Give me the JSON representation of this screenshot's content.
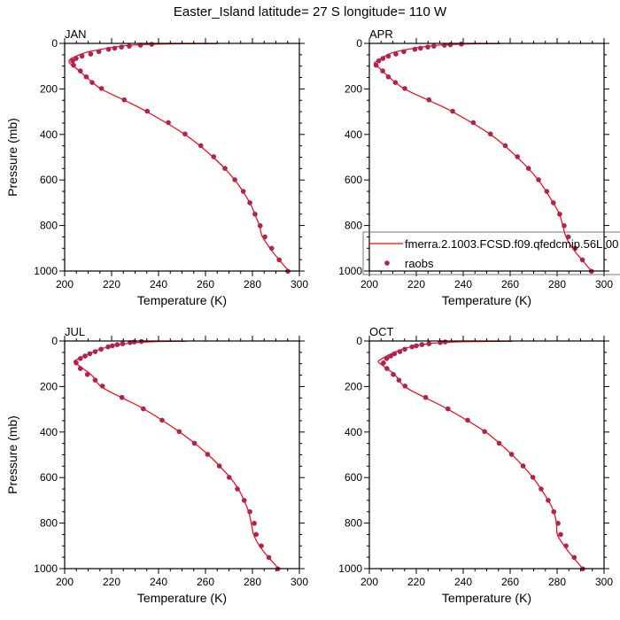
{
  "title": "Easter_Island  latitude= 27 S longitude= 110 W",
  "legend": {
    "model_label": "fmerra.2.1003.FCSD.f09.qfedcmip.56L.00",
    "obs_label": "raobs",
    "placement": "inside lower-right of APR panel"
  },
  "colors": {
    "model": "#ff0000",
    "obs": "#b0234f",
    "frame": "#000000"
  },
  "chart_data": [
    {
      "type": "line+scatter",
      "title": "JAN",
      "xlabel": "Temperature (K)",
      "ylabel": "Pressure (mb)",
      "xlim": [
        200,
        300
      ],
      "ylim": [
        1000,
        0
      ],
      "xticks": [
        "200",
        "220",
        "240",
        "260",
        "280",
        "300"
      ],
      "yticks": [
        "0",
        "200",
        "400",
        "600",
        "800",
        "1000"
      ],
      "obs": {
        "p": [
          4,
          8,
          12,
          16,
          21,
          26,
          36,
          47,
          56,
          66,
          77,
          96,
          121,
          147,
          172,
          198,
          248,
          298,
          348,
          398,
          449,
          498,
          549,
          599,
          650,
          700,
          750,
          801,
          850,
          900,
          951,
          1001
        ],
        "T": [
          237.1,
          232.3,
          227.5,
          224.2,
          221.3,
          218.7,
          214.6,
          211.1,
          207.4,
          204.9,
          203.4,
          203.8,
          206.7,
          209.2,
          211.7,
          215.7,
          225.4,
          235.2,
          244.2,
          251.3,
          258.0,
          263.5,
          268.3,
          272.5,
          276.1,
          278.9,
          281.1,
          283.3,
          285.3,
          288.2,
          291.4,
          295.1
        ]
      },
      "model": {
        "p": [
          1,
          3,
          8,
          15,
          25,
          40,
          60,
          75,
          90,
          110,
          150,
          200,
          250,
          300,
          400,
          500,
          600,
          700,
          750,
          800,
          830,
          850,
          900,
          950,
          1000
        ],
        "T": [
          265,
          240,
          228,
          222,
          216,
          209,
          204,
          201.9,
          202.5,
          205,
          209.5,
          215.5,
          225.5,
          235,
          251.2,
          263.3,
          272.5,
          278.9,
          281,
          283,
          283.6,
          284.3,
          287.5,
          291.3,
          295.5
        ]
      }
    },
    {
      "type": "line+scatter",
      "title": "APR",
      "xlabel": "Temperature (K)",
      "ylabel": "",
      "xlim": [
        200,
        300
      ],
      "ylim": [
        1000,
        0
      ],
      "xticks": [
        "200",
        "220",
        "240",
        "260",
        "280",
        "300"
      ],
      "yticks": [
        "0",
        "200",
        "400",
        "600",
        "800",
        "1000"
      ],
      "obs": {
        "p": [
          3,
          6,
          8,
          12,
          16,
          21,
          26,
          36,
          47,
          56,
          66,
          77,
          96,
          121,
          147,
          172,
          198,
          248,
          298,
          348,
          398,
          449,
          498,
          549,
          599,
          650,
          700,
          750,
          801,
          850,
          900,
          951,
          1001
        ],
        "T": [
          239.2,
          234.5,
          232.0,
          227.5,
          224.9,
          221.8,
          219.4,
          214.7,
          211.3,
          208.1,
          205.8,
          204.0,
          202.9,
          205.7,
          208.1,
          211.1,
          215.1,
          225.4,
          235.5,
          244.3,
          251.6,
          257.9,
          263.1,
          267.8,
          272.1,
          275.6,
          278.4,
          281.1,
          283.0,
          284.8,
          287.7,
          290.8,
          294.6
        ]
      },
      "model": {
        "p": [
          1,
          3,
          8,
          15,
          25,
          40,
          60,
          80,
          91,
          110,
          150,
          200,
          250,
          300,
          400,
          500,
          600,
          700,
          750,
          800,
          850,
          900,
          950,
          1000
        ],
        "T": [
          256,
          240,
          229,
          223,
          217,
          210,
          206,
          203,
          202.1,
          204.5,
          208.6,
          215,
          225.2,
          235.4,
          251.6,
          263,
          272,
          278.3,
          281,
          282.4,
          283.8,
          286.6,
          290.5,
          294.6
        ]
      }
    },
    {
      "type": "line+scatter",
      "title": "JUL",
      "xlabel": "Temperature (K)",
      "ylabel": "Pressure (mb)",
      "xlim": [
        200,
        300
      ],
      "ylim": [
        1000,
        0
      ],
      "xticks": [
        "200",
        "220",
        "240",
        "260",
        "280",
        "300"
      ],
      "yticks": [
        "0",
        "200",
        "400",
        "600",
        "800",
        "1000"
      ],
      "obs": {
        "p": [
          2,
          4,
          7,
          12,
          16,
          21,
          26,
          36,
          47,
          56,
          66,
          77,
          96,
          121,
          147,
          172,
          198,
          248,
          298,
          348,
          398,
          449,
          498,
          549,
          599,
          650,
          700,
          750,
          801,
          850,
          900,
          951,
          1001
        ],
        "T": [
          232.7,
          229.7,
          227.9,
          224.7,
          222.4,
          220.3,
          218.5,
          215.5,
          213.0,
          210.7,
          208.7,
          206.7,
          204.9,
          206.7,
          209.7,
          213.0,
          216.1,
          224.4,
          233.5,
          241.5,
          248.8,
          255.3,
          260.9,
          265.9,
          270.1,
          273.6,
          276.5,
          278.9,
          280.8,
          281.6,
          283.8,
          287.0,
          290.8
        ]
      },
      "model": {
        "p": [
          1,
          3,
          8,
          15,
          25,
          40,
          60,
          80,
          91,
          110,
          150,
          200,
          250,
          300,
          400,
          500,
          600,
          650,
          700,
          750,
          800,
          850,
          900,
          950,
          1000
        ],
        "T": [
          252,
          238,
          229,
          224,
          219,
          214,
          209.5,
          205.5,
          204,
          206.3,
          211.5,
          215.5,
          224.5,
          234,
          249,
          261.2,
          270.5,
          274,
          276.4,
          278.4,
          279.5,
          280.5,
          283,
          286.8,
          291.2
        ]
      }
    },
    {
      "type": "line+scatter",
      "title": "OCT",
      "xlabel": "Temperature (K)",
      "ylabel": "",
      "xlim": [
        200,
        300
      ],
      "ylim": [
        1000,
        0
      ],
      "xticks": [
        "200",
        "220",
        "240",
        "260",
        "280",
        "300"
      ],
      "yticks": [
        "0",
        "200",
        "400",
        "600",
        "800",
        "1000"
      ],
      "obs": {
        "p": [
          4,
          7,
          12,
          16,
          21,
          26,
          36,
          47,
          56,
          66,
          77,
          96,
          121,
          147,
          172,
          198,
          248,
          298,
          348,
          398,
          449,
          498,
          549,
          599,
          650,
          700,
          750,
          801,
          850,
          900,
          951,
          1001
        ],
        "T": [
          232.3,
          230.2,
          225.4,
          222.4,
          220.0,
          218.2,
          215.1,
          213.0,
          210.7,
          209.1,
          207.4,
          206.0,
          207.5,
          210.2,
          212.6,
          215.2,
          224.0,
          233.5,
          241.9,
          249.1,
          255.3,
          260.6,
          265.5,
          269.7,
          273.2,
          276.2,
          278.6,
          280.4,
          281.5,
          283.8,
          287.3,
          290.9
        ]
      },
      "model": {
        "p": [
          1,
          3,
          8,
          15,
          25,
          40,
          60,
          80,
          91,
          110,
          150,
          200,
          250,
          300,
          400,
          500,
          600,
          700,
          750,
          800,
          850,
          900,
          950,
          1000
        ],
        "T": [
          261,
          240,
          229,
          223,
          218,
          213,
          208.5,
          205,
          203.8,
          206,
          211,
          215,
          224,
          233.5,
          249.5,
          260.8,
          269.7,
          276.2,
          278.6,
          279.7,
          280.1,
          283,
          286.8,
          290.9
        ]
      }
    }
  ]
}
